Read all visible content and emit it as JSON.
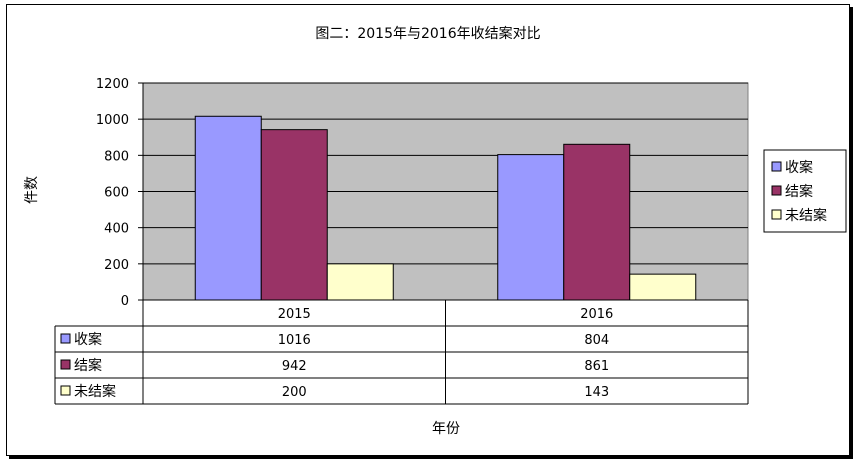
{
  "chart_data": {
    "type": "bar",
    "title": "图二：2015年与2016年收结案对比",
    "xlabel": "年份",
    "ylabel": "件数",
    "categories": [
      "2015",
      "2016"
    ],
    "ylim": [
      0,
      1200
    ],
    "yticks": [
      0,
      200,
      400,
      600,
      800,
      1000,
      1200
    ],
    "grid": true,
    "legend_position": "right",
    "data_table": true,
    "series": [
      {
        "name": "收案",
        "values": [
          1016,
          804
        ],
        "color": "#9999ff"
      },
      {
        "name": "结案",
        "values": [
          942,
          861
        ],
        "color": "#993366"
      },
      {
        "name": "未结案",
        "values": [
          200,
          143
        ],
        "color": "#ffffcc"
      }
    ],
    "plot_background": "#c0c0c0"
  }
}
